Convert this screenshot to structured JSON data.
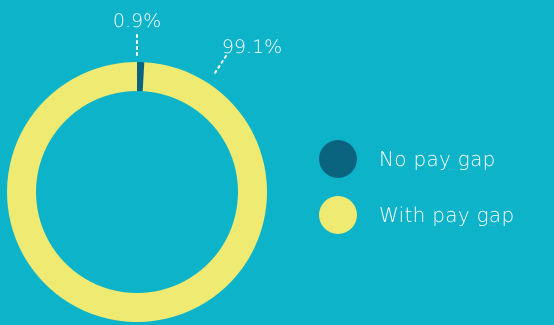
{
  "chart_data": {
    "type": "pie",
    "variant": "donut",
    "categories": [
      "No pay gap",
      "With pay gap"
    ],
    "values": [
      0.9,
      99.1
    ],
    "labels": [
      "0.9%",
      "99.1%"
    ],
    "colors": [
      "#0a6480",
      "#eeea72"
    ],
    "legend_placement": "right"
  },
  "legend": {
    "items": [
      {
        "label": "No pay gap",
        "color": "#0a6480"
      },
      {
        "label": "With pay gap",
        "color": "#eeea72"
      }
    ]
  },
  "colors": {
    "background": "#0db3c9",
    "label_text": "#ffffff"
  }
}
